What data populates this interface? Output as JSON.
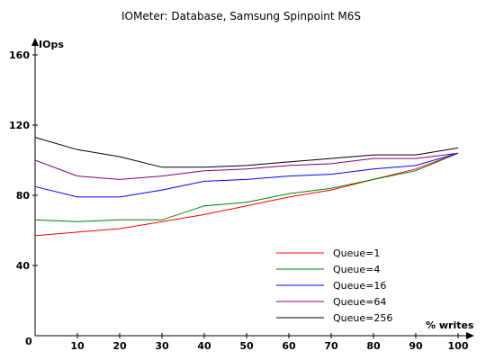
{
  "chart_data": {
    "type": "line",
    "title": "IOMeter: Database, Samsung Spinpoint M6S",
    "xlabel": "% writes",
    "ylabel": "IOps",
    "origin_label": "0",
    "xlim": [
      0,
      100
    ],
    "ylim": [
      0,
      160
    ],
    "x": [
      0,
      10,
      20,
      30,
      40,
      50,
      60,
      70,
      80,
      90,
      100
    ],
    "xticks": [
      10,
      20,
      30,
      40,
      50,
      60,
      70,
      80,
      90,
      100
    ],
    "yticks": [
      40,
      80,
      120,
      160
    ],
    "grid": false,
    "legend_position": "bottom-right",
    "series": [
      {
        "name": "Queue=1",
        "color": "#ff0000",
        "values": [
          57,
          59,
          61,
          65,
          69,
          74,
          79,
          83,
          89,
          95,
          104
        ]
      },
      {
        "name": "Queue=4",
        "color": "#008000",
        "values": [
          66,
          65,
          66,
          66,
          74,
          76,
          81,
          84,
          89,
          94,
          104
        ]
      },
      {
        "name": "Queue=16",
        "color": "#0000ff",
        "values": [
          85,
          79,
          79,
          83,
          88,
          89,
          91,
          92,
          95,
          97,
          104
        ]
      },
      {
        "name": "Queue=64",
        "color": "#800080",
        "values": [
          100,
          91,
          89,
          91,
          94,
          95,
          97,
          98,
          101,
          101,
          104
        ]
      },
      {
        "name": "Queue=256",
        "color": "#000000",
        "values": [
          113,
          106,
          102,
          96,
          96,
          97,
          99,
          101,
          103,
          103,
          107
        ]
      }
    ]
  }
}
